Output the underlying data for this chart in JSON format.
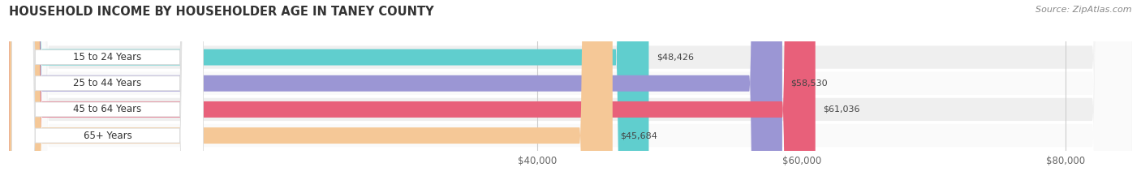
{
  "title": "HOUSEHOLD INCOME BY HOUSEHOLDER AGE IN TANEY COUNTY",
  "source": "Source: ZipAtlas.com",
  "categories": [
    "15 to 24 Years",
    "25 to 44 Years",
    "45 to 64 Years",
    "65+ Years"
  ],
  "values": [
    48426,
    58530,
    61036,
    45684
  ],
  "bar_colors": [
    "#60cece",
    "#9b96d4",
    "#e8607a",
    "#f5c897"
  ],
  "bar_bg_color": "#e8e8e8",
  "value_labels": [
    "$48,426",
    "$58,530",
    "$61,036",
    "$45,684"
  ],
  "xlim_min": 0,
  "xlim_max": 85000,
  "xticks": [
    40000,
    60000,
    80000
  ],
  "xtick_labels": [
    "$40,000",
    "$60,000",
    "$80,000"
  ],
  "background_color": "#ffffff",
  "row_bg_colors": [
    "#efefef",
    "#fafafa",
    "#efefef",
    "#fafafa"
  ]
}
